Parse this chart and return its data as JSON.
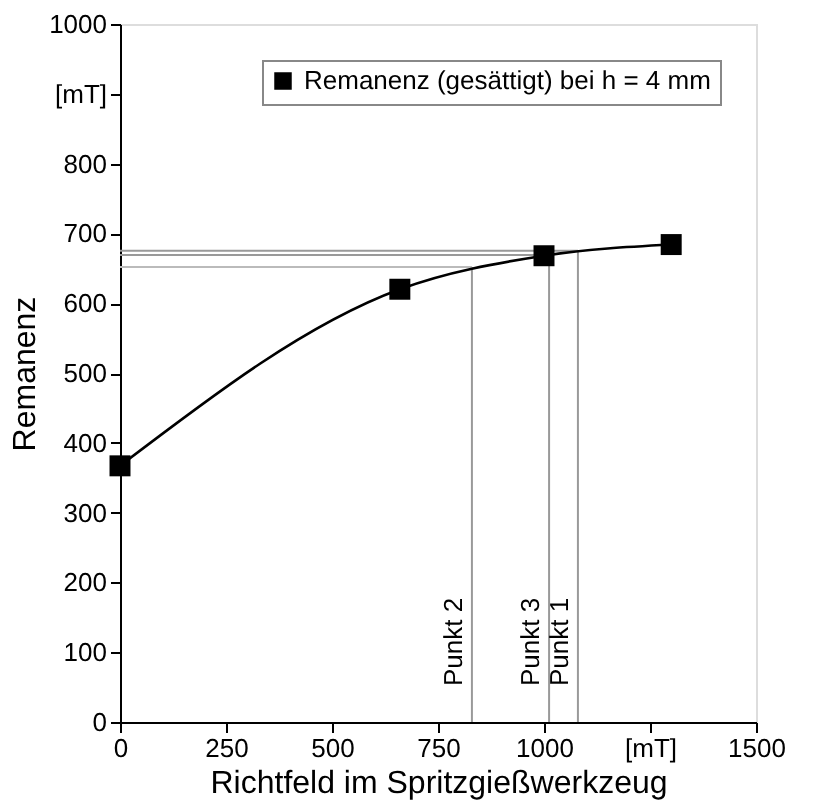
{
  "chart_data": {
    "type": "line",
    "xlabel": "Richtfeld im Spritzgießwerkzeug",
    "ylabel": "Remanenz",
    "x": [
      0,
      660,
      1000,
      1300
    ],
    "series": [
      {
        "name": "Remanenz (gesättigt) bei h = 4 mm",
        "color": "#000000",
        "values": [
          367,
          620,
          668,
          684
        ]
      }
    ],
    "xlim": [
      0,
      1500
    ],
    "xticks": [
      0,
      250,
      500,
      750,
      1000,
      {
        "value": 1250,
        "label": "[mT]"
      },
      1500
    ],
    "ylim": [
      0,
      1000
    ],
    "yticks": [
      0,
      100,
      200,
      300,
      400,
      500,
      600,
      700,
      800,
      {
        "value": 900,
        "label": "[mT]"
      },
      1000
    ],
    "marker": "square",
    "line_style": "solid",
    "legend": "top right",
    "grid": false,
    "ref_lines": [
      {
        "axis": "x",
        "value": 830,
        "label": "Punkt 2",
        "color": "#999999"
      },
      {
        "axis": "x",
        "value": 1012,
        "label": "Punkt 3",
        "color": "#999999"
      },
      {
        "axis": "x",
        "value": 1080,
        "label": "Punkt 1",
        "color": "#999999"
      },
      {
        "axis": "y",
        "value": 652,
        "label": null,
        "color": "#bbbbbb"
      },
      {
        "axis": "y",
        "value": 669,
        "label": null,
        "color": "#999999"
      },
      {
        "axis": "y",
        "value": 675,
        "label": null,
        "color": "#999999"
      }
    ]
  }
}
